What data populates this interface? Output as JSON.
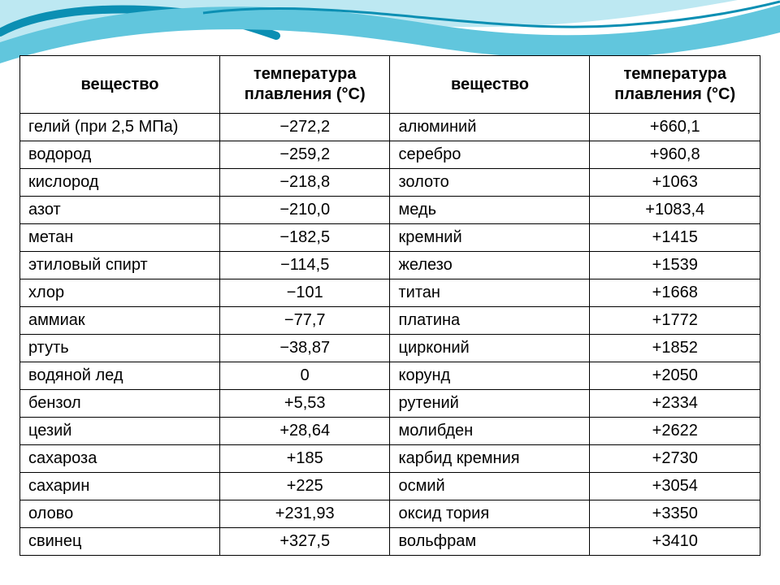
{
  "decoration": {
    "swirl_light": "#bde8f2",
    "swirl_mid": "#61c6dd",
    "swirl_dark": "#0b8fb3",
    "background": "#ffffff"
  },
  "table": {
    "border_color": "#000000",
    "font_family": "Verdana",
    "header_fontsize_pt": 16,
    "cell_fontsize_pt": 15,
    "columns": [
      {
        "key": "sub1",
        "label": "вещество",
        "align": "left"
      },
      {
        "key": "val1",
        "label": "температура плавления (°C)",
        "align": "center"
      },
      {
        "key": "sub2",
        "label": "вещество",
        "align": "left"
      },
      {
        "key": "val2",
        "label": "температура плавления (°C)",
        "align": "center"
      }
    ],
    "rows": [
      {
        "sub1": "гелий (при 2,5 МПа)",
        "val1": "−272,2",
        "sub2": "алюминий",
        "val2": "+660,1"
      },
      {
        "sub1": "водород",
        "val1": "−259,2",
        "sub2": "серебро",
        "val2": "+960,8"
      },
      {
        "sub1": "кислород",
        "val1": "−218,8",
        "sub2": "золото",
        "val2": "+1063"
      },
      {
        "sub1": "азот",
        "val1": "−210,0",
        "sub2": "медь",
        "val2": "+1083,4"
      },
      {
        "sub1": "метан",
        "val1": "−182,5",
        "sub2": "кремний",
        "val2": "+1415"
      },
      {
        "sub1": "этиловый спирт",
        "val1": "−114,5",
        "sub2": "железо",
        "val2": "+1539"
      },
      {
        "sub1": "хлор",
        "val1": "−101",
        "sub2": "титан",
        "val2": "+1668"
      },
      {
        "sub1": "аммиак",
        "val1": "−77,7",
        "sub2": "платина",
        "val2": "+1772"
      },
      {
        "sub1": "ртуть",
        "val1": "−38,87",
        "sub2": "цирконий",
        "val2": "+1852"
      },
      {
        "sub1": "водяной лед",
        "val1": "0",
        "sub2": "корунд",
        "val2": "+2050"
      },
      {
        "sub1": "бензол",
        "val1": "+5,53",
        "sub2": "рутений",
        "val2": "+2334"
      },
      {
        "sub1": "цезий",
        "val1": "+28,64",
        "sub2": "молибден",
        "val2": "+2622"
      },
      {
        "sub1": "сахароза",
        "val1": "+185",
        "sub2": "карбид кремния",
        "val2": "+2730"
      },
      {
        "sub1": "сахарин",
        "val1": "+225",
        "sub2": "осмий",
        "val2": "+3054"
      },
      {
        "sub1": "олово",
        "val1": "+231,93",
        "sub2": "оксид тория",
        "val2": "+3350"
      },
      {
        "sub1": "свинец",
        "val1": "+327,5",
        "sub2": "вольфрам",
        "val2": "+3410"
      }
    ]
  }
}
